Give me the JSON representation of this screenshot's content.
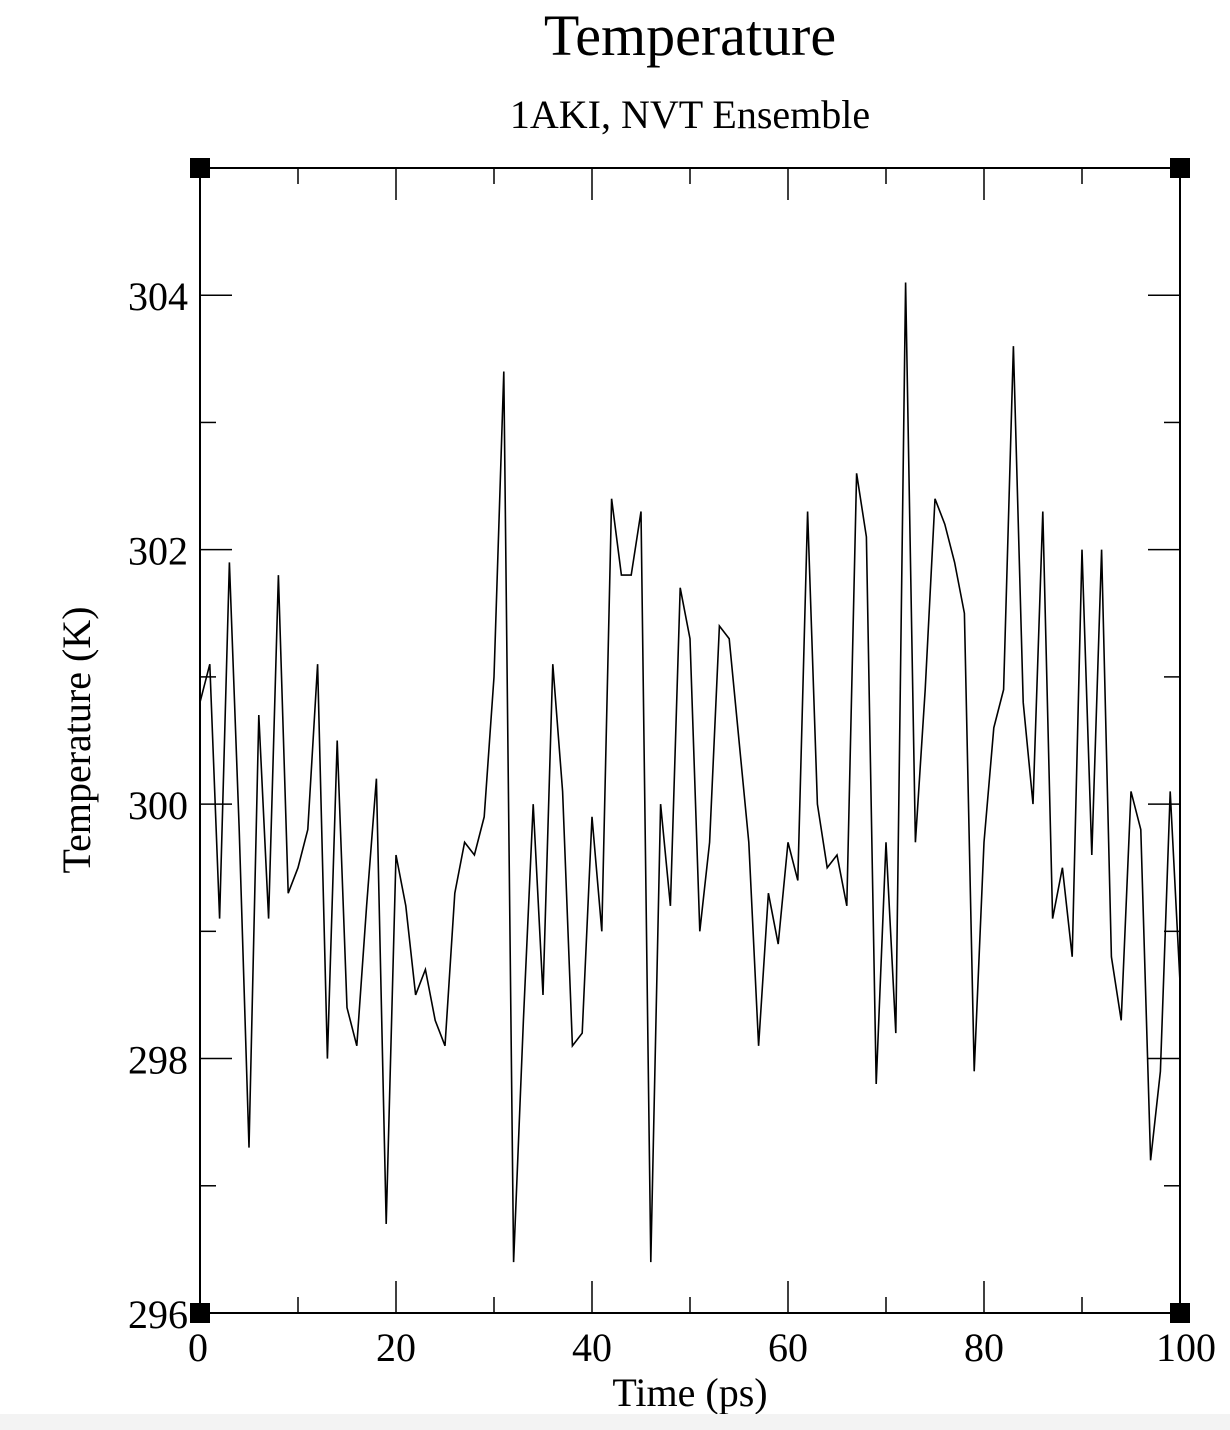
{
  "chart_data": {
    "type": "line",
    "title": "Temperature",
    "subtitle": "1AKI, NVT Ensemble",
    "xlabel": "Time (ps)",
    "ylabel": "Temperature (K)",
    "xlim": [
      0,
      100
    ],
    "ylim": [
      296,
      305
    ],
    "x_ticks": [
      0,
      20,
      40,
      60,
      80,
      100
    ],
    "y_ticks": [
      296,
      298,
      300,
      302,
      304
    ],
    "x_minor_step": 10,
    "y_minor_step": 1,
    "grid": false,
    "colors": {
      "line": "#000000",
      "axes": "#000000",
      "background": "#ffffff"
    },
    "series": [
      {
        "x": [
          0,
          1,
          2,
          3,
          4,
          5,
          6,
          7,
          8,
          9,
          10,
          11,
          12,
          13,
          14,
          15,
          16,
          17,
          18,
          19,
          20,
          21,
          22,
          23,
          24,
          25,
          26,
          27,
          28,
          29,
          30,
          31,
          32,
          33,
          34,
          35,
          36,
          37,
          38,
          39,
          40,
          41,
          42,
          43,
          44,
          45,
          46,
          47,
          48,
          49,
          50,
          51,
          52,
          53,
          54,
          55,
          56,
          57,
          58,
          59,
          60,
          61,
          62,
          63,
          64,
          65,
          66,
          67,
          68,
          69,
          70,
          71,
          72,
          73,
          74,
          75,
          76,
          77,
          78,
          79,
          80,
          81,
          82,
          83,
          84,
          85,
          86,
          87,
          88,
          89,
          90,
          91,
          92,
          93,
          94,
          95,
          96,
          97,
          98,
          99,
          100
        ],
        "values": [
          300.8,
          301.1,
          299.1,
          301.9,
          299.8,
          297.3,
          300.7,
          299.1,
          301.8,
          299.3,
          299.5,
          299.8,
          301.1,
          298.0,
          300.5,
          298.4,
          298.1,
          299.2,
          300.2,
          296.7,
          299.6,
          299.2,
          298.5,
          298.7,
          298.3,
          298.1,
          299.3,
          299.7,
          299.6,
          299.9,
          301.0,
          303.4,
          296.4,
          298.3,
          300.0,
          298.5,
          301.1,
          300.1,
          298.1,
          298.2,
          299.9,
          299.0,
          302.4,
          301.8,
          301.8,
          302.3,
          296.4,
          300.0,
          299.2,
          301.7,
          301.3,
          299.0,
          299.7,
          301.4,
          301.3,
          300.5,
          299.7,
          298.1,
          299.3,
          298.9,
          299.7,
          299.4,
          302.3,
          300.0,
          299.5,
          299.6,
          299.2,
          302.6,
          302.1,
          297.8,
          299.7,
          298.2,
          304.1,
          299.7,
          300.9,
          302.4,
          302.2,
          301.9,
          301.5,
          297.9,
          299.7,
          300.6,
          300.9,
          303.6,
          300.8,
          300.0,
          302.3,
          299.1,
          299.5,
          298.8,
          302.0,
          299.6,
          302.0,
          298.8,
          298.3,
          300.1,
          299.8,
          297.2,
          297.9,
          300.1,
          298.6
        ]
      }
    ]
  }
}
